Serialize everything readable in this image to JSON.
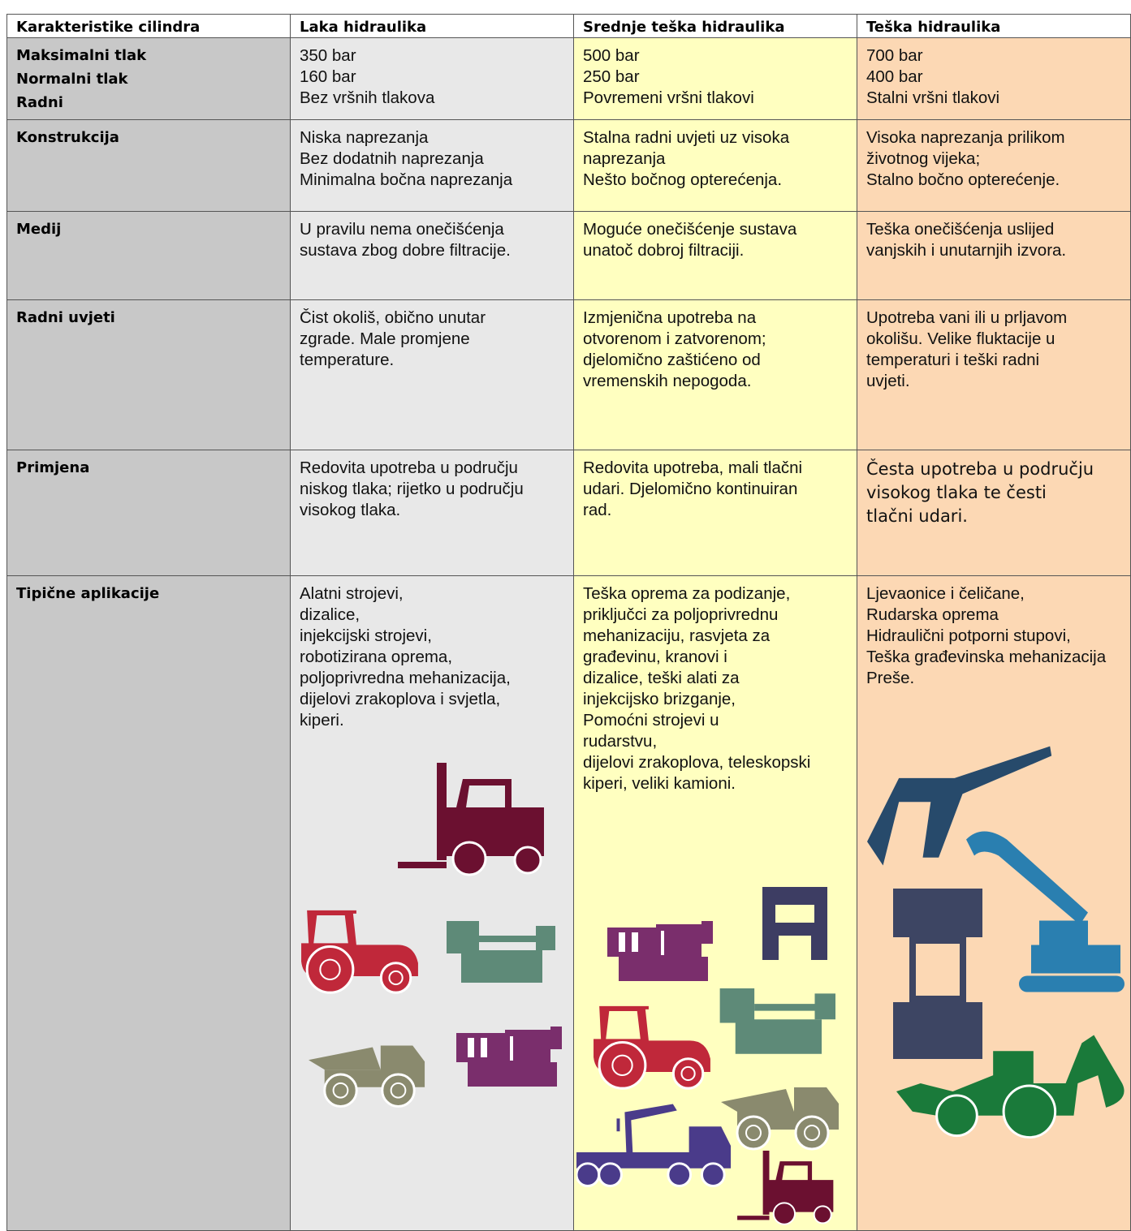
{
  "table": {
    "header": [
      "Karakteristike cilindra",
      "Laka hidraulika",
      "Srednje teška hidraulika",
      "Teška hidraulika"
    ],
    "rows": [
      {
        "label": [
          "Maksimalni tlak",
          "Normalni tlak",
          "Radni"
        ],
        "cells": [
          [
            "350 bar",
            "160 bar",
            "Bez vršnih tlakova"
          ],
          [
            "500 bar",
            "250 bar",
            "Povremeni vršni tlakovi"
          ],
          [
            "700 bar",
            "400 bar",
            "Stalni vršni tlakovi"
          ]
        ]
      },
      {
        "label": [
          "Konstrukcija"
        ],
        "cells": [
          [
            "Niska naprezanja",
            "Bez dodatnih naprezanja",
            "Minimalna bočna naprezanja"
          ],
          [
            "Stalna radni uvjeti uz visoka",
            "naprezanja",
            "Nešto bočnog opterećenja."
          ],
          [
            "Visoka naprezanja prilikom",
            "životnog vijeka;",
            "Stalno bočno opterećenje."
          ]
        ]
      },
      {
        "label": [
          "Medij"
        ],
        "cells": [
          [
            "U pravilu nema onečišćenja",
            "sustava zbog dobre filtracije."
          ],
          [
            "Moguće onečišćenje sustava",
            "unatoč dobroj filtraciji."
          ],
          [
            "Teška onečišćenja uslijed",
            "vanjskih i unutarnjih izvora."
          ]
        ]
      },
      {
        "label": [
          "Radni uvjeti"
        ],
        "cells": [
          [
            "Čist okoliš, obično unutar",
            "zgrade. Male promjene",
            "temperature."
          ],
          [
            "Izmjenična upotreba na",
            "otvorenom i zatvorenom;",
            "djelomično zaštićeno od",
            "vremenskih nepogoda."
          ],
          [
            "Upotreba vani ili u prljavom",
            "okolišu. Velike fluktacije u",
            "temperaturi i teški radni",
            "uvjeti."
          ]
        ]
      },
      {
        "label": [
          "Primjena"
        ],
        "cells": [
          [
            "Redovita upotreba u području",
            "niskog tlaka; rijetko u području",
            "visokog tlaka."
          ],
          [
            "Redovita upotreba, mali tlačni",
            "udari. Djelomično kontinuiran",
            "rad."
          ],
          [
            "Česta upotreba u području",
            "visokog tlaka te česti",
            "tlačni udari."
          ]
        ]
      },
      {
        "label": [
          "Tipične aplikacije"
        ],
        "cells": [
          [
            "Alatni strojevi,",
            "dizalice,",
            "injekcijski strojevi,",
            "robotizirana oprema,",
            "poljoprivredna mehanizacija,",
            "dijelovi zrakoplova i svjetla,",
            "kiperi."
          ],
          [
            "Teška oprema za podizanje,",
            "priključci za poljoprivrednu",
            "mehanizaciju, rasvjeta za",
            "građevinu, kranovi i",
            "dizalice, teški alati za",
            "injekcijsko brizganje,",
            "Pomoćni strojevi u",
            "rudarstvu,",
            "dijelovi zrakoplova, teleskopski",
            "kiperi, veliki kamioni."
          ],
          [
            "Ljevaonice i čeličane,",
            "Rudarska oprema",
            "Hidraulični potporni stupovi,",
            "Teška građevinska mehanizacija",
            "Preše."
          ]
        ]
      }
    ]
  }
}
